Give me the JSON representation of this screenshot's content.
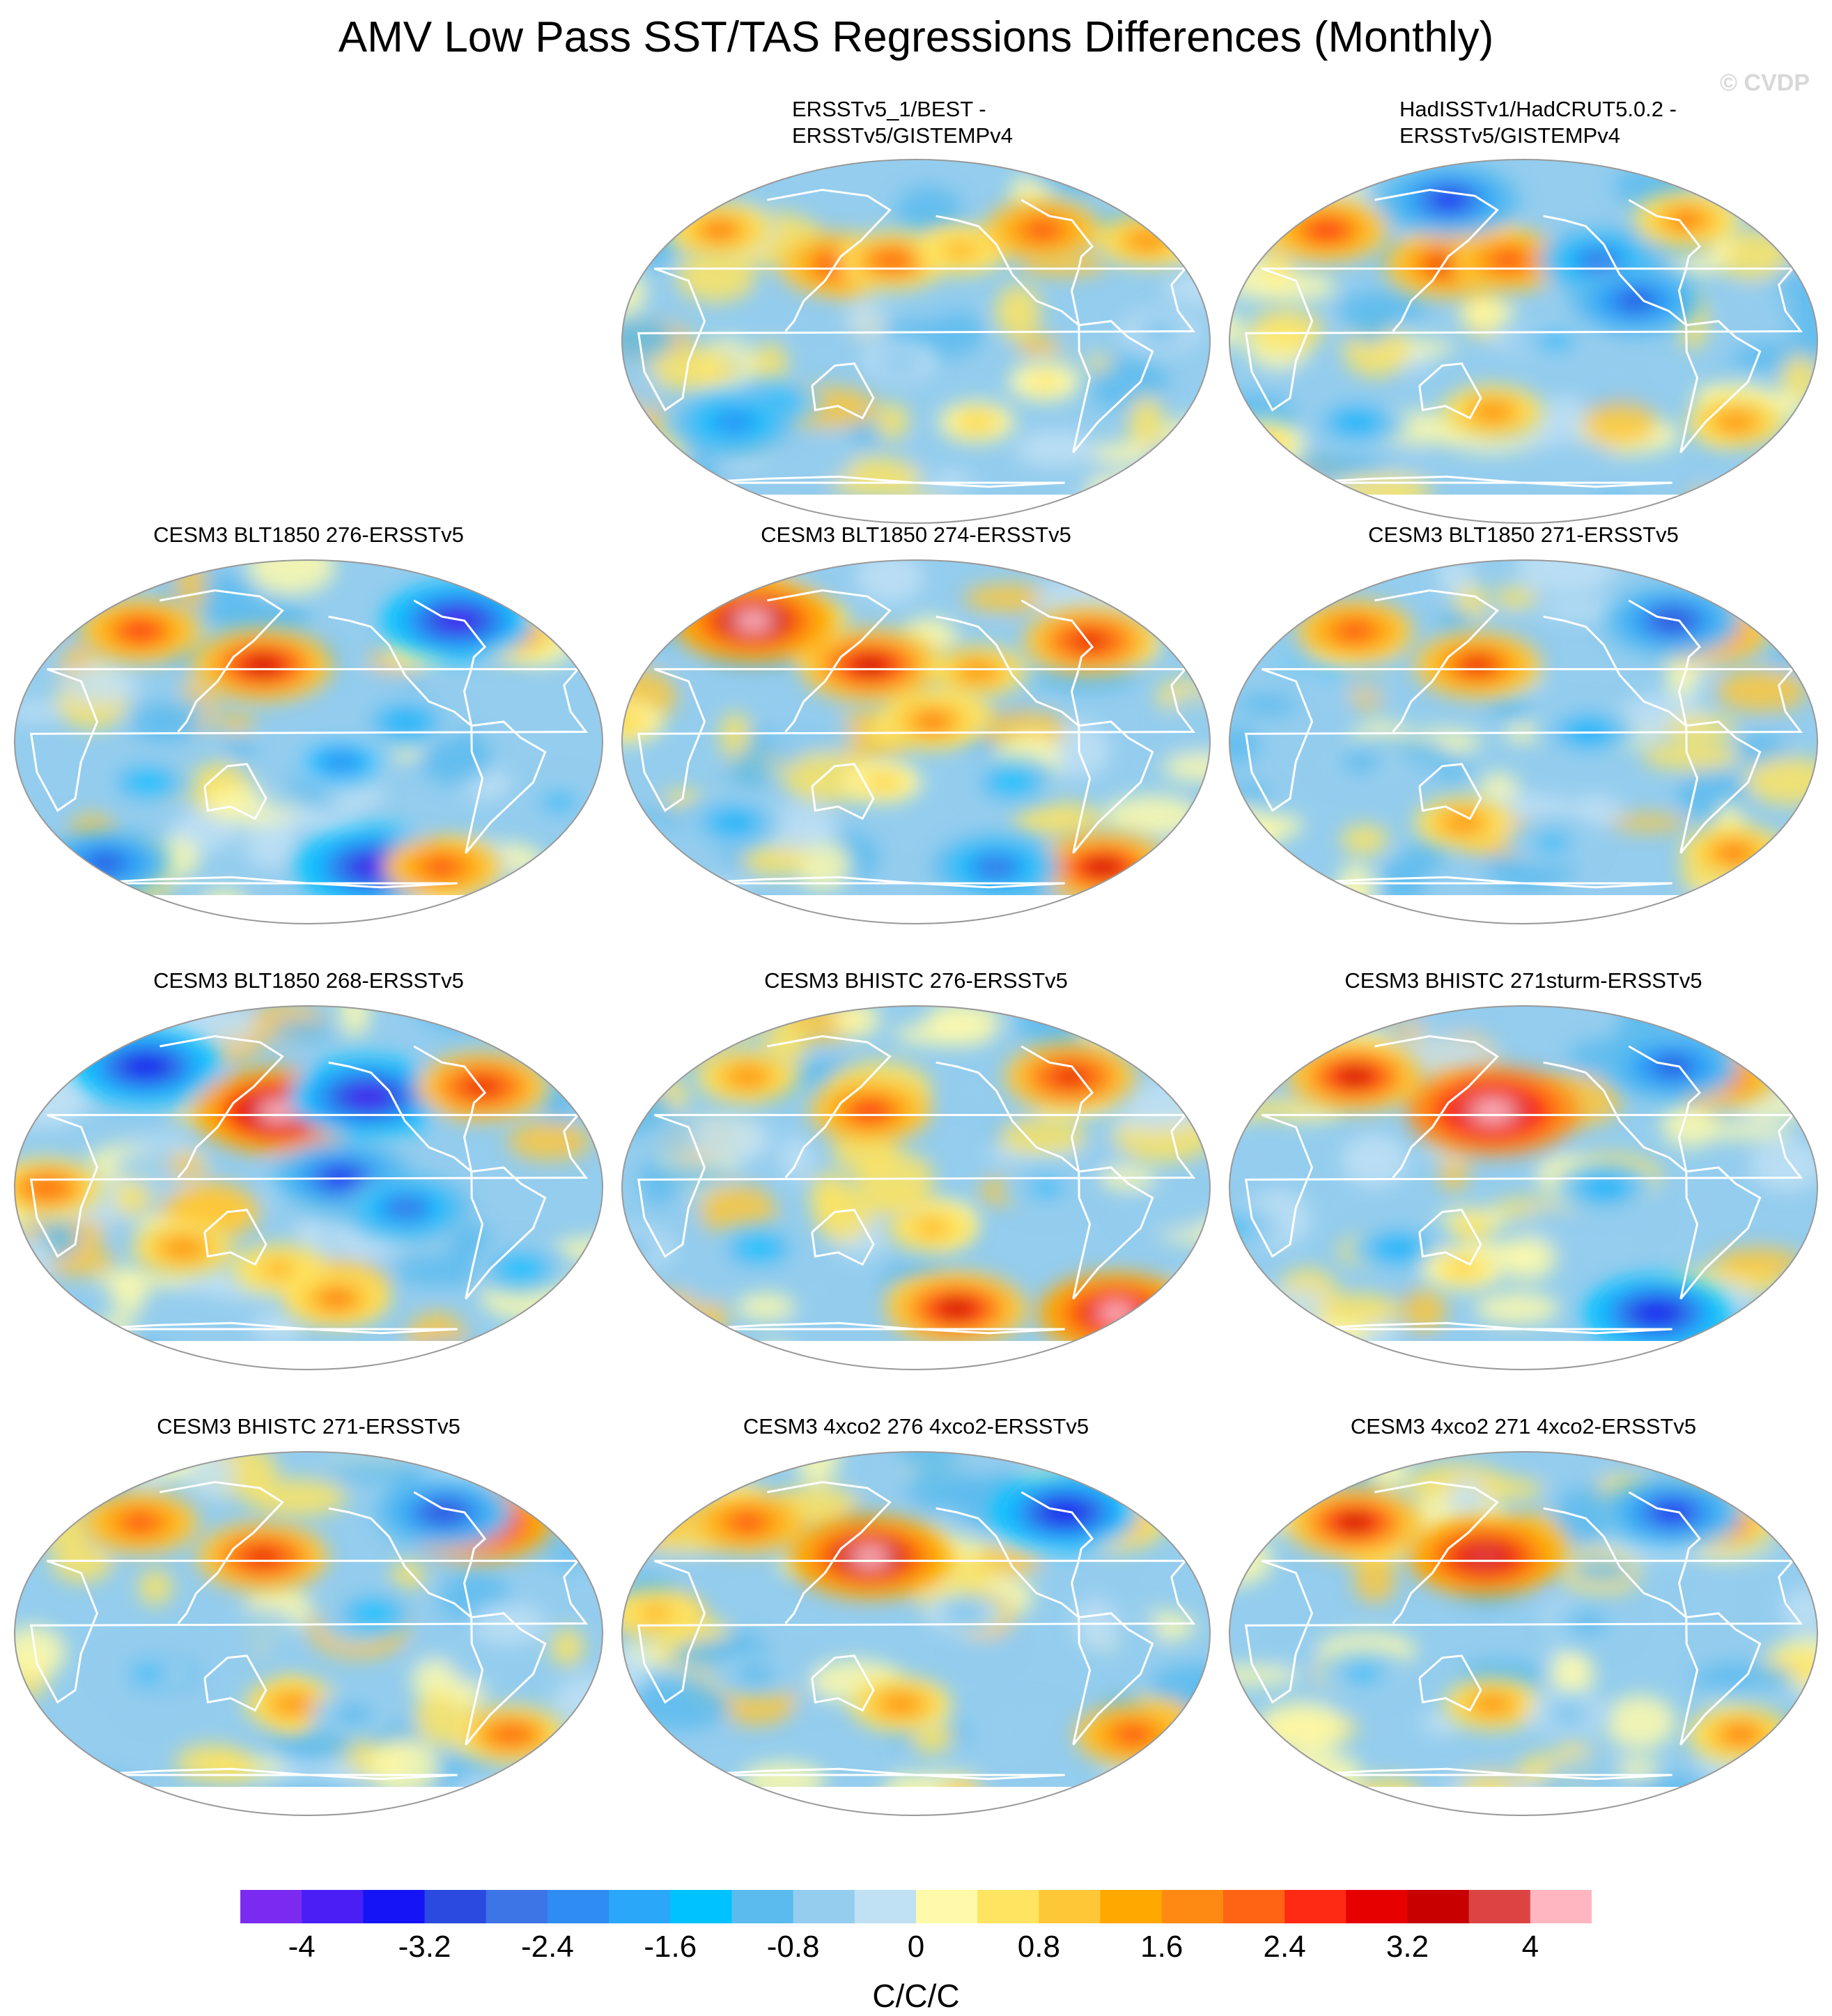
{
  "title": "AMV Low Pass SST/TAS Regressions Differences (Monthly)",
  "watermark": "© CVDP",
  "panels": [
    {
      "id": "p02",
      "title": "ERSSTv5_1/BEST - ERSSTv5/GISTEMPv4",
      "title_lines": [
        "ERSSTv5_1/BEST -",
        "ERSSTv5/GISTEMPv4"
      ],
      "row": 0,
      "col": 1,
      "anomalies": [
        {
          "lon": 130,
          "lat": 38,
          "v": 2.6
        },
        {
          "lon": 165,
          "lat": 40,
          "v": 2.2
        },
        {
          "lon": -150,
          "lat": 45,
          "v": 1.4
        },
        {
          "lon": -20,
          "lat": 50,
          "v": 1.8
        },
        {
          "lon": 40,
          "lat": 55,
          "v": 2.0
        },
        {
          "lon": -90,
          "lat": 55,
          "v": 2.4
        },
        {
          "lon": -100,
          "lat": -20,
          "v": 0.6
        },
        {
          "lon": 90,
          "lat": -30,
          "v": -1.6
        },
        {
          "lon": 60,
          "lat": -40,
          "v": -2.4
        },
        {
          "lon": -30,
          "lat": 5,
          "v": -1.0
        },
        {
          "lon": 170,
          "lat": -10,
          "v": -0.8
        },
        {
          "lon": -140,
          "lat": -40,
          "v": 0.8
        }
      ]
    },
    {
      "id": "p03",
      "title": "HadISSTv1/HadCRUT5.0.2 - ERSSTv5/GISTEMPv4",
      "title_lines": [
        "HadISSTv1/HadCRUT5.0.2 -",
        "ERSSTv5/GISTEMPv4"
      ],
      "row": 0,
      "col": 2,
      "anomalies": [
        {
          "lon": 130,
          "lat": 38,
          "v": 2.8
        },
        {
          "lon": 170,
          "lat": 40,
          "v": 2.4
        },
        {
          "lon": 40,
          "lat": 55,
          "v": 2.6
        },
        {
          "lon": -130,
          "lat": 40,
          "v": -2.6
        },
        {
          "lon": -110,
          "lat": 20,
          "v": -3.0
        },
        {
          "lon": -160,
          "lat": 0,
          "v": -1.4
        },
        {
          "lon": 160,
          "lat": -35,
          "v": 1.8
        },
        {
          "lon": -40,
          "lat": -40,
          "v": 1.6
        },
        {
          "lon": 0,
          "lat": -50,
          "v": 1.0
        },
        {
          "lon": 70,
          "lat": -40,
          "v": -1.8
        },
        {
          "lon": -60,
          "lat": 60,
          "v": 2.0
        },
        {
          "lon": 120,
          "lat": 70,
          "v": -3.4
        }
      ]
    },
    {
      "id": "p04",
      "title": "CESM3 BLT1850 276-ERSSTv5",
      "row": 1,
      "col": 0,
      "anomalies": [
        {
          "lon": 150,
          "lat": 38,
          "v": 3.4
        },
        {
          "lon": 60,
          "lat": 55,
          "v": 2.6
        },
        {
          "lon": -40,
          "lat": 55,
          "v": 2.2
        },
        {
          "lon": -120,
          "lat": 10,
          "v": -2.0
        },
        {
          "lon": -160,
          "lat": -10,
          "v": -2.2
        },
        {
          "lon": -130,
          "lat": -62,
          "v": -4.0
        },
        {
          "lon": -70,
          "lat": 60,
          "v": -3.8
        },
        {
          "lon": 80,
          "lat": -20,
          "v": -1.6
        },
        {
          "lon": -20,
          "lat": -30,
          "v": -1.4
        },
        {
          "lon": -80,
          "lat": -62,
          "v": 2.4
        },
        {
          "lon": 30,
          "lat": -60,
          "v": -3.0
        }
      ]
    },
    {
      "id": "p05",
      "title": "CESM3 BLT1850 274-ERSSTv5",
      "row": 1,
      "col": 1,
      "anomalies": [
        {
          "lon": 150,
          "lat": 38,
          "v": 3.4
        },
        {
          "lon": 60,
          "lat": 60,
          "v": 4.2
        },
        {
          "lon": -60,
          "lat": 50,
          "v": 3.0
        },
        {
          "lon": -170,
          "lat": 10,
          "v": 2.0
        },
        {
          "lon": -140,
          "lat": 35,
          "v": 1.6
        },
        {
          "lon": -120,
          "lat": -20,
          "v": -1.6
        },
        {
          "lon": -40,
          "lat": -62,
          "v": 3.2
        },
        {
          "lon": -120,
          "lat": -62,
          "v": -2.8
        },
        {
          "lon": 60,
          "lat": -40,
          "v": -1.8
        },
        {
          "lon": 0,
          "lat": 10,
          "v": 1.0
        },
        {
          "lon": 160,
          "lat": -20,
          "v": 0.8
        }
      ]
    },
    {
      "id": "p06",
      "title": "CESM3 BLT1850 271-ERSSTv5",
      "row": 1,
      "col": 2,
      "anomalies": [
        {
          "lon": 150,
          "lat": 38,
          "v": 2.8
        },
        {
          "lon": 60,
          "lat": 55,
          "v": 2.4
        },
        {
          "lon": -50,
          "lat": 55,
          "v": 2.8
        },
        {
          "lon": -140,
          "lat": 5,
          "v": -1.8
        },
        {
          "lon": 140,
          "lat": -40,
          "v": 1.6
        },
        {
          "lon": -30,
          "lat": -55,
          "v": 2.0
        },
        {
          "lon": -70,
          "lat": 60,
          "v": -3.2
        },
        {
          "lon": 80,
          "lat": -10,
          "v": -1.2
        },
        {
          "lon": -160,
          "lat": -50,
          "v": -1.4
        }
      ]
    },
    {
      "id": "p07",
      "title": "CESM3 BLT1850 268-ERSSTv5",
      "row": 2,
      "col": 0,
      "anomalies": [
        {
          "lon": 160,
          "lat": 38,
          "v": 4.4
        },
        {
          "lon": -140,
          "lat": 45,
          "v": -4.0
        },
        {
          "lon": -160,
          "lat": 5,
          "v": -3.4
        },
        {
          "lon": -120,
          "lat": -10,
          "v": -2.8
        },
        {
          "lon": 60,
          "lat": 60,
          "v": -3.6
        },
        {
          "lon": -60,
          "lat": 50,
          "v": 3.0
        },
        {
          "lon": 20,
          "lat": 0,
          "v": 2.2
        },
        {
          "lon": 100,
          "lat": -30,
          "v": 1.8
        },
        {
          "lon": 160,
          "lat": -40,
          "v": 1.4
        },
        {
          "lon": -160,
          "lat": -55,
          "v": 2.0
        },
        {
          "lon": -40,
          "lat": -40,
          "v": -1.6
        }
      ]
    },
    {
      "id": "p08",
      "title": "CESM3 BHISTC 276-ERSSTv5",
      "row": 2,
      "col": 1,
      "anomalies": [
        {
          "lon": 150,
          "lat": 38,
          "v": 2.6
        },
        {
          "lon": -70,
          "lat": 55,
          "v": 3.0
        },
        {
          "lon": -150,
          "lat": -60,
          "v": 3.4
        },
        {
          "lon": -30,
          "lat": -62,
          "v": 4.0
        },
        {
          "lon": 60,
          "lat": 55,
          "v": 1.8
        },
        {
          "lon": -170,
          "lat": -20,
          "v": 1.2
        },
        {
          "lon": -100,
          "lat": 0,
          "v": -1.4
        },
        {
          "lon": 80,
          "lat": -30,
          "v": -1.6
        },
        {
          "lon": 0,
          "lat": -30,
          "v": -1.0
        }
      ]
    },
    {
      "id": "p09",
      "title": "CESM3 BHISTC 271sturm-ERSSTv5",
      "row": 2,
      "col": 2,
      "anomalies": [
        {
          "lon": 160,
          "lat": 38,
          "v": 4.6
        },
        {
          "lon": 60,
          "lat": 55,
          "v": 3.2
        },
        {
          "lon": -40,
          "lat": 55,
          "v": 2.4
        },
        {
          "lon": -70,
          "lat": 60,
          "v": -3.0
        },
        {
          "lon": -130,
          "lat": 0,
          "v": -1.8
        },
        {
          "lon": -80,
          "lat": -62,
          "v": -3.6
        },
        {
          "lon": 100,
          "lat": -30,
          "v": -1.8
        },
        {
          "lon": 140,
          "lat": -40,
          "v": 1.0
        },
        {
          "lon": 0,
          "lat": -20,
          "v": -1.4
        }
      ]
    },
    {
      "id": "p10",
      "title": "CESM3 BHISTC 271-ERSSTv5",
      "row": 3,
      "col": 0,
      "anomalies": [
        {
          "lon": 150,
          "lat": 38,
          "v": 3.0
        },
        {
          "lon": 60,
          "lat": 55,
          "v": 2.4
        },
        {
          "lon": -60,
          "lat": 55,
          "v": 3.8
        },
        {
          "lon": -80,
          "lat": 60,
          "v": -3.2
        },
        {
          "lon": -140,
          "lat": 10,
          "v": -1.6
        },
        {
          "lon": 170,
          "lat": -35,
          "v": 1.6
        },
        {
          "lon": -40,
          "lat": -50,
          "v": 2.2
        },
        {
          "lon": 80,
          "lat": -20,
          "v": -1.4
        },
        {
          "lon": -150,
          "lat": -40,
          "v": -1.2
        }
      ]
    },
    {
      "id": "p11",
      "title": "CESM3 4xco2 276 4xco2-ERSSTv5",
      "row": 3,
      "col": 1,
      "anomalies": [
        {
          "lon": 150,
          "lat": 38,
          "v": 4.2
        },
        {
          "lon": 60,
          "lat": 55,
          "v": 2.4
        },
        {
          "lon": -40,
          "lat": 55,
          "v": 2.0
        },
        {
          "lon": -70,
          "lat": 60,
          "v": -3.6
        },
        {
          "lon": -150,
          "lat": 10,
          "v": -1.0
        },
        {
          "lon": 170,
          "lat": -35,
          "v": 1.8
        },
        {
          "lon": -30,
          "lat": -50,
          "v": 2.4
        },
        {
          "lon": 80,
          "lat": -20,
          "v": -1.2
        },
        {
          "lon": 20,
          "lat": 10,
          "v": 1.4
        }
      ]
    },
    {
      "id": "p12",
      "title": "CESM3 4xco2 271 4xco2-ERSSTv5",
      "row": 3,
      "col": 2,
      "anomalies": [
        {
          "lon": 155,
          "lat": 38,
          "v": 3.8
        },
        {
          "lon": 60,
          "lat": 55,
          "v": 3.2
        },
        {
          "lon": -40,
          "lat": 55,
          "v": 2.2
        },
        {
          "lon": -70,
          "lat": 60,
          "v": -3.4
        },
        {
          "lon": -140,
          "lat": 5,
          "v": -1.2
        },
        {
          "lon": 160,
          "lat": -35,
          "v": 1.6
        },
        {
          "lon": -30,
          "lat": -50,
          "v": 2.0
        },
        {
          "lon": 80,
          "lat": -20,
          "v": -1.4
        },
        {
          "lon": -150,
          "lat": -40,
          "v": -1.0
        }
      ]
    }
  ],
  "colorbar": {
    "colors": [
      "#7b2bf0",
      "#4a1ff5",
      "#1414f5",
      "#2b4ae0",
      "#3d74e6",
      "#2f8cf3",
      "#2aa7f8",
      "#00c2ff",
      "#5cbbee",
      "#94cdee",
      "#c0e0f4",
      "#fffaaa",
      "#fee460",
      "#fec738",
      "#fea800",
      "#fe8a14",
      "#fe6414",
      "#fe2a14",
      "#e60000",
      "#c80000",
      "#dc4444",
      "#ffb6c1"
    ],
    "levels": [
      -4.4,
      -4,
      -3.6,
      -3.2,
      -2.8,
      -2.4,
      -2,
      -1.6,
      -1.2,
      -0.8,
      -0.4,
      0,
      0.4,
      0.8,
      1.2,
      1.6,
      2,
      2.4,
      2.8,
      3.2,
      3.6,
      4,
      4.4
    ],
    "tick_labels": [
      "-4",
      "-3.2",
      "-2.4",
      "-1.6",
      "-0.8",
      "0",
      "0.8",
      "1.6",
      "2.4",
      "3.2",
      "4"
    ],
    "tick_values": [
      -4,
      -3.2,
      -2.4,
      -1.6,
      -0.8,
      0,
      0.8,
      1.6,
      2.4,
      3.2,
      4
    ],
    "units": "C/C/C"
  }
}
